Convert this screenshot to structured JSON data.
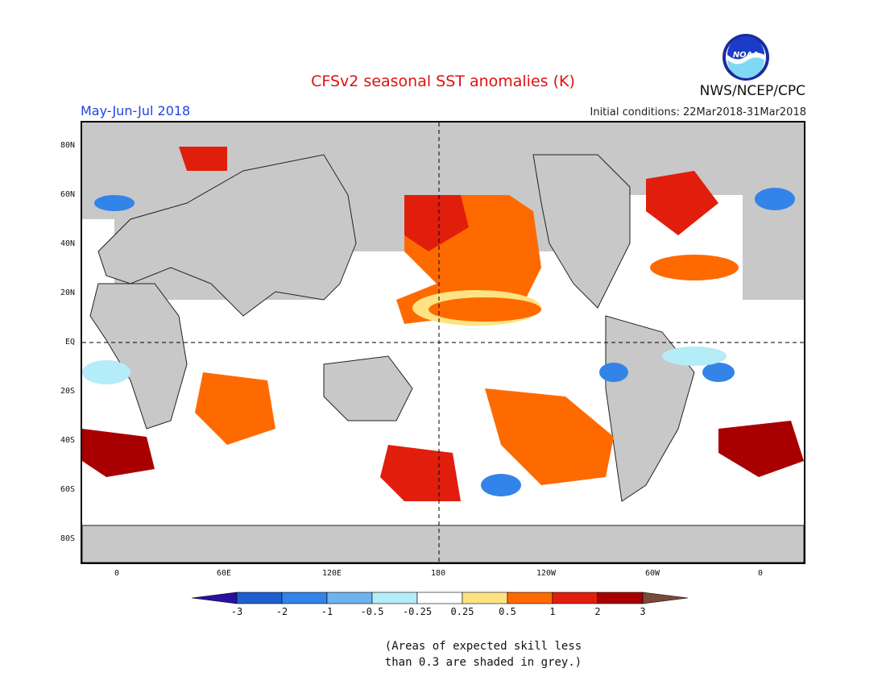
{
  "title": "CFSv2 seasonal SST anomalies (K)",
  "season": "May-Jun-Jul 2018",
  "initial_conditions": "Initial conditions: 22Mar2018-31Mar2018",
  "agency": "NWS/NCEP/CPC",
  "logo": {
    "label": "NOAA"
  },
  "map": {
    "lat_labels": [
      "80N",
      "60N",
      "40N",
      "20N",
      "EQ",
      "20S",
      "40S",
      "60S",
      "80S"
    ],
    "lon_labels": [
      "0",
      "60E",
      "120E",
      "180",
      "120W",
      "60W",
      "0"
    ],
    "grey_meaning": "low skill"
  },
  "legend": {
    "tick_labels": [
      "-3",
      "-2",
      "-1",
      "-0.5",
      "-0.25",
      "0.25",
      "0.5",
      "1",
      "2",
      "3"
    ],
    "colors": [
      "#2b0fa0",
      "#1e5fd0",
      "#3384e8",
      "#6fb2f0",
      "#b4ecf8",
      "#ffffff",
      "#fde383",
      "#ff6a00",
      "#e11e0c",
      "#a80000",
      "#7a4a38"
    ]
  },
  "note": {
    "line1": "(Areas of expected skill less",
    "line2": "than 0.3 are shaded in grey.)"
  }
}
